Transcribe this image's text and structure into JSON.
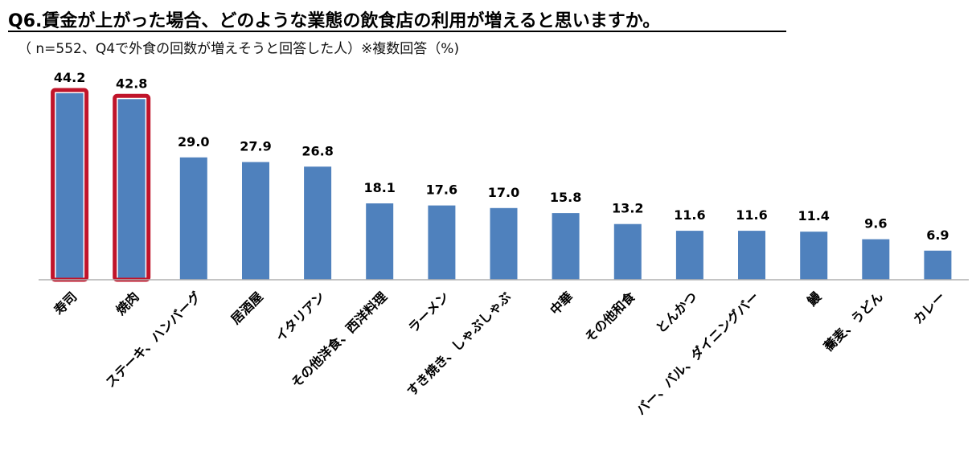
{
  "title": "Q6.賃金が上がった場合、どのような業態の飲食店の利用が増えると思いますか。",
  "subtitle": "（ n=552、Q4で外食の回数が増えそうと回答した人）※複数回答（%)",
  "colors": {
    "bar": "#4f81bd",
    "highlight": "#c0142a",
    "axis": "#b0b0b0"
  },
  "chart_data": {
    "type": "bar",
    "title": "Q6.賃金が上がった場合、どのような業態の飲食店の利用が増えると思いますか。",
    "subtitle": "（ n=552、Q4で外食の回数が増えそうと回答した人）※複数回答（%)",
    "categories": [
      "寿司",
      "焼肉",
      "ステーキ、ハンバーグ",
      "居酒屋",
      "イタリアン",
      "その他洋食、西洋料理",
      "ラーメン",
      "すき焼き、しゃぶしゃぶ",
      "中華",
      "その他和食",
      "とんかつ",
      "バー、バル、ダイニングバー",
      "鰻",
      "蕎麦、うどん",
      "カレー"
    ],
    "values": [
      44.2,
      42.8,
      29.0,
      27.9,
      26.8,
      18.1,
      17.6,
      17.0,
      15.8,
      13.2,
      11.6,
      11.6,
      11.4,
      9.6,
      6.9
    ],
    "value_labels": [
      "44.2",
      "42.8",
      "29.0",
      "27.9",
      "26.8",
      "18.1",
      "17.6",
      "17.0",
      "15.8",
      "13.2",
      "11.6",
      "11.6",
      "11.4",
      "9.6",
      "6.9"
    ],
    "highlighted": [
      "寿司",
      "焼肉"
    ],
    "ylim": [
      0,
      44.2
    ],
    "grid": false,
    "legend": "none",
    "xlabel": "",
    "ylabel": ""
  }
}
